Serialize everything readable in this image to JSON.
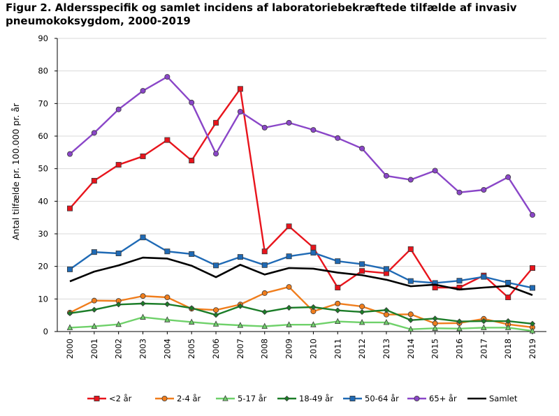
{
  "chart_data": {
    "type": "line",
    "title": "Figur 2. Aldersspecifik og samlet incidens af laboratoriebekræftede tilfælde af invasiv pneumokoksygdom, 2000-2019",
    "xlabel": "",
    "ylabel": "Antal tilfælde pr. 100.000 pr. år",
    "ylim": [
      0,
      90
    ],
    "yticks": [
      0,
      10,
      20,
      30,
      40,
      50,
      60,
      70,
      80,
      90
    ],
    "grid": true,
    "legend_position": "bottom",
    "x": [
      "2000",
      "2001",
      "2002",
      "2003",
      "2004",
      "2005",
      "2006",
      "2007",
      "2008",
      "2009",
      "2010",
      "2011",
      "2012",
      "2013",
      "2014",
      "2015",
      "2016",
      "2017",
      "2018",
      "2019"
    ],
    "series": [
      {
        "name": "<2 år",
        "color": "#e8141c",
        "marker": "square",
        "values": [
          37.8,
          46.3,
          51.2,
          53.8,
          58.8,
          52.5,
          64.1,
          74.5,
          24.6,
          32.3,
          25.8,
          13.5,
          18.6,
          17.9,
          25.3,
          13.5,
          13.5,
          17.2,
          10.5,
          19.5
        ]
      },
      {
        "name": "2-4 år",
        "color": "#f07d1c",
        "marker": "circle",
        "values": [
          5.8,
          9.5,
          9.4,
          10.9,
          10.5,
          7.0,
          6.6,
          8.3,
          11.8,
          13.7,
          6.2,
          8.6,
          7.7,
          5.2,
          5.3,
          2.5,
          2.6,
          3.9,
          2.2,
          1.3
        ]
      },
      {
        "name": "5-17 år",
        "color": "#6fd16a",
        "marker": "triangle",
        "values": [
          1.2,
          1.6,
          2.2,
          4.4,
          3.6,
          2.9,
          2.3,
          1.9,
          1.6,
          2.1,
          2.1,
          3.1,
          2.8,
          2.8,
          0.7,
          1.0,
          0.9,
          1.2,
          1.2,
          0.2
        ]
      },
      {
        "name": "18-49 år",
        "color": "#1b7d28",
        "marker": "diamond",
        "values": [
          5.6,
          6.7,
          8.3,
          8.6,
          8.4,
          7.2,
          5.1,
          7.8,
          6.0,
          7.3,
          7.5,
          6.5,
          6.0,
          6.6,
          3.5,
          4.0,
          3.1,
          3.2,
          3.2,
          2.4
        ]
      },
      {
        "name": "50-64 år",
        "color": "#1f6ab5",
        "marker": "square",
        "values": [
          19.1,
          24.4,
          24.0,
          28.9,
          24.6,
          23.8,
          20.3,
          22.9,
          20.4,
          23.1,
          24.2,
          21.6,
          20.7,
          19.2,
          15.5,
          14.9,
          15.6,
          16.8,
          15.0,
          13.4
        ]
      },
      {
        "name": "65+ år",
        "color": "#8a46c8",
        "marker": "circle",
        "values": [
          54.5,
          61.0,
          68.2,
          73.9,
          78.2,
          70.3,
          54.6,
          67.5,
          62.6,
          64.1,
          61.9,
          59.4,
          56.2,
          47.8,
          46.6,
          49.4,
          42.7,
          43.5,
          47.4,
          35.8
        ]
      },
      {
        "name": "Samlet",
        "color": "#000000",
        "marker": "none",
        "values": [
          15.4,
          18.4,
          20.3,
          22.7,
          22.4,
          20.2,
          16.7,
          20.5,
          17.5,
          19.5,
          19.3,
          18.1,
          17.3,
          15.9,
          13.9,
          14.4,
          12.9,
          13.5,
          14.0,
          11.2
        ]
      }
    ]
  }
}
